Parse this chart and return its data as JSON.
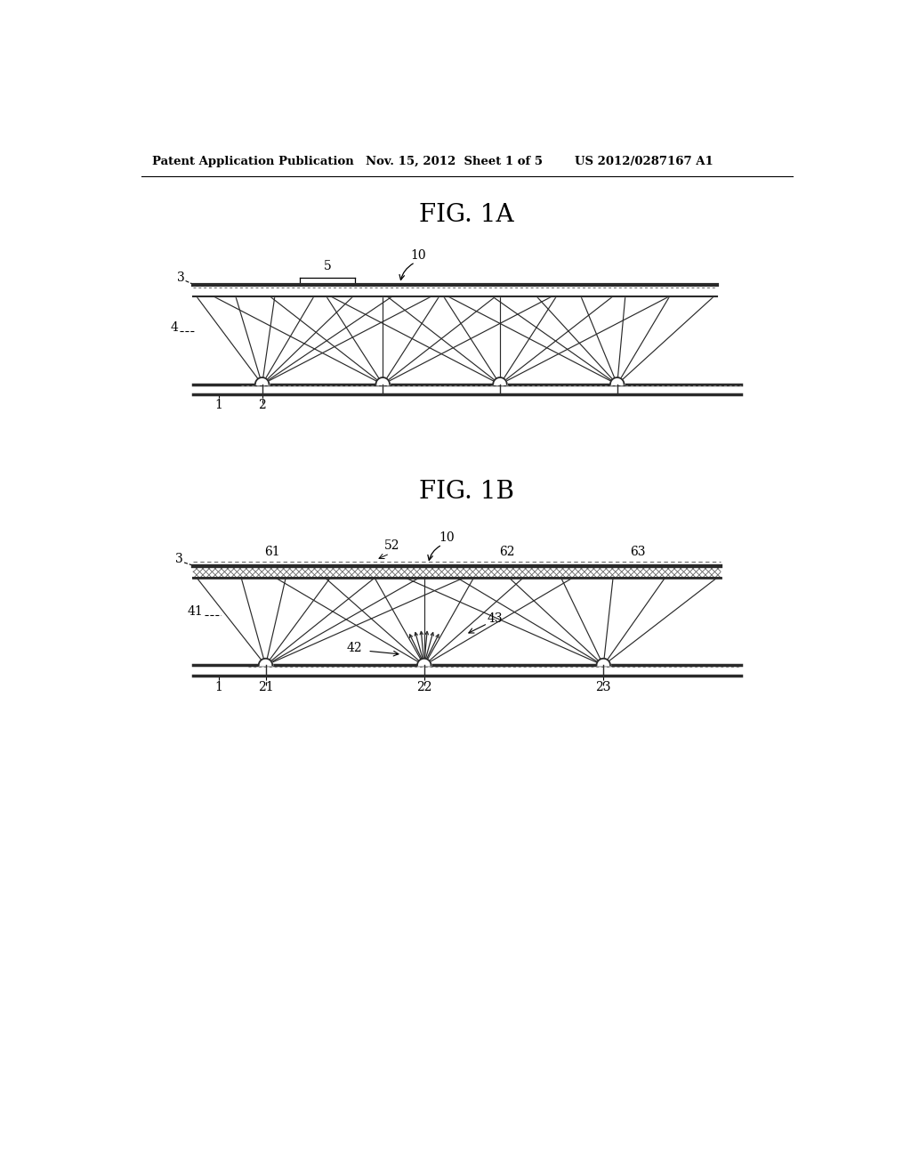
{
  "bg_color": "#ffffff",
  "header_left": "Patent Application Publication",
  "header_mid": "Nov. 15, 2012  Sheet 1 of 5",
  "header_right": "US 2012/0287167 A1",
  "fig1a_title": "FIG. 1A",
  "fig1b_title": "FIG. 1B",
  "ray_color": "#2a2a2a",
  "plate_color": "#2a2a2a",
  "hatch_color": "#555555"
}
